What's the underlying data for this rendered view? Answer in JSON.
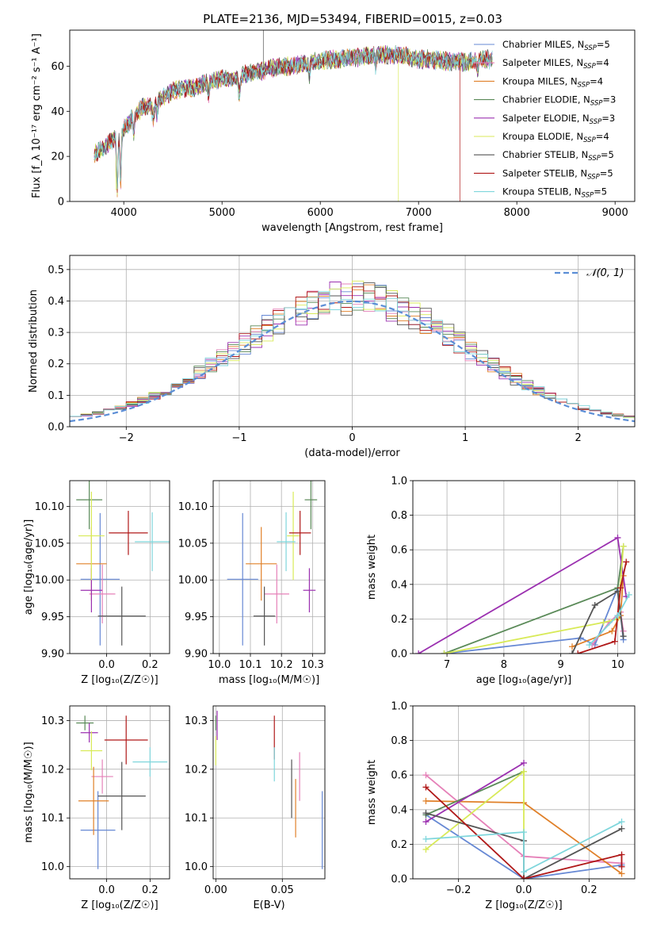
{
  "title": "PLATE=2136, MJD=53494, FIBERID=0015, z=0.03",
  "colors": {
    "Chabrier MILES": "#6688d4",
    "Salpeter MILES": "#e580b8",
    "Kroupa MILES": "#e08029",
    "Chabrier ELODIE": "#5a8a58",
    "Salpeter ELODIE": "#9b30b0",
    "Kroupa ELODIE": "#d8ea58",
    "Chabrier STELIB": "#555555",
    "Salpeter STELIB": "#b01818",
    "Kroupa STELIB": "#7fd6dc"
  },
  "chart_data": [
    {
      "id": "spectrum",
      "type": "line",
      "title": "PLATE=2136, MJD=53494, FIBERID=0015, z=0.03",
      "xlabel": "wavelength [Angstrom, rest frame]",
      "ylabel": "Flux [f_λ 10⁻¹⁷ erg cm⁻² s⁻¹ A⁻¹]",
      "xlim": [
        3450,
        9200
      ],
      "ylim": [
        0,
        76
      ],
      "xticks": [
        4000,
        5000,
        6000,
        7000,
        8000,
        9000
      ],
      "yticks": [
        0,
        20,
        40,
        60
      ],
      "grid": false,
      "legend_position": "right",
      "legend": [
        "Chabrier MILES, N_SSP=5",
        "Salpeter MILES, N_SSP=4",
        "Kroupa MILES, N_SSP=4",
        "Chabrier ELODIE, N_SSP=3",
        "Salpeter ELODIE, N_SSP=3",
        "Kroupa ELODIE, N_SSP=4",
        "Chabrier STELIB, N_SSP=5",
        "Salpeter STELIB, N_SSP=5",
        "Kroupa STELIB, N_SSP=5"
      ],
      "continuum": [
        [
          3700,
          21
        ],
        [
          3800,
          24
        ],
        [
          3900,
          28
        ],
        [
          4000,
          32
        ],
        [
          4100,
          38
        ],
        [
          4200,
          42
        ],
        [
          4300,
          43
        ],
        [
          4400,
          46
        ],
        [
          4500,
          49
        ],
        [
          4600,
          50
        ],
        [
          4700,
          50
        ],
        [
          4800,
          52
        ],
        [
          4900,
          53
        ],
        [
          5000,
          55
        ],
        [
          5100,
          54
        ],
        [
          5200,
          56
        ],
        [
          5300,
          57
        ],
        [
          5400,
          58
        ],
        [
          5500,
          59
        ],
        [
          5600,
          60
        ],
        [
          5700,
          60
        ],
        [
          5800,
          61
        ],
        [
          5900,
          62
        ],
        [
          6000,
          62
        ],
        [
          6100,
          63
        ],
        [
          6200,
          63
        ],
        [
          6300,
          64
        ],
        [
          6400,
          64
        ],
        [
          6500,
          65
        ],
        [
          6600,
          65
        ],
        [
          6700,
          65
        ],
        [
          6800,
          65
        ],
        [
          6900,
          64
        ],
        [
          7000,
          63
        ],
        [
          7100,
          63
        ],
        [
          7200,
          63
        ],
        [
          7300,
          62
        ],
        [
          7400,
          62
        ],
        [
          7500,
          62
        ],
        [
          7600,
          63
        ],
        [
          7700,
          63
        ]
      ],
      "artifacts": [
        {
          "series": "Kroupa ELODIE",
          "x": 3920,
          "to": 5
        },
        {
          "series": "Kroupa ELODIE",
          "x": 6795,
          "to": 0
        },
        {
          "series": "Salpeter STELIB",
          "x": 7420,
          "to": 0
        },
        {
          "series": "Chabrier STELIB",
          "x": 5420,
          "to": 76
        }
      ]
    },
    {
      "id": "residuals",
      "type": "line",
      "xlabel": "(data-model)/error",
      "ylabel": "Normed distribution",
      "xlim": [
        -2.5,
        2.5
      ],
      "ylim": [
        0,
        0.545
      ],
      "xticks": [
        -2,
        -1,
        0,
        1,
        2
      ],
      "yticks": [
        0.0,
        0.1,
        0.2,
        0.3,
        0.4,
        0.5
      ],
      "grid": true,
      "legend": [
        "𝒩(0, 1)"
      ],
      "legend_position": "top-right",
      "bin_width": 0.1
    },
    {
      "id": "age_vs_Z",
      "type": "scatter",
      "xlabel": "Z [log₁₀(Z/Z☉)]",
      "ylabel": "age  [log₁₀(age/yr)]",
      "xlim": [
        -0.17,
        0.29
      ],
      "ylim": [
        9.9,
        10.135
      ],
      "xticks": [
        0.0,
        0.2
      ],
      "yticks": [
        9.9,
        9.95,
        10.0,
        10.05,
        10.1
      ],
      "grid": true,
      "points": [
        {
          "s": "Chabrier MILES",
          "x": -0.03,
          "xerr": 0.09,
          "y": 10.001,
          "yerr": 0.09
        },
        {
          "s": "Salpeter MILES",
          "x": -0.02,
          "xerr": 0.06,
          "y": 9.981,
          "yerr": 0.04
        },
        {
          "s": "Kroupa MILES",
          "x": -0.07,
          "xerr": 0.07,
          "y": 10.022,
          "yerr": 0.05
        },
        {
          "s": "Chabrier ELODIE",
          "x": -0.08,
          "xerr": 0.06,
          "y": 10.109,
          "yerr": 0.04
        },
        {
          "s": "Salpeter ELODIE",
          "x": -0.07,
          "xerr": 0.05,
          "y": 9.986,
          "yerr": 0.03
        },
        {
          "s": "Kroupa ELODIE",
          "x": -0.07,
          "xerr": 0.06,
          "y": 10.06,
          "yerr": 0.06
        },
        {
          "s": "Chabrier STELIB",
          "x": 0.07,
          "xerr": 0.11,
          "y": 9.951,
          "yerr": 0.04
        },
        {
          "s": "Salpeter STELIB",
          "x": 0.1,
          "xerr": 0.09,
          "y": 10.064,
          "yerr": 0.03
        },
        {
          "s": "Kroupa STELIB",
          "x": 0.21,
          "xerr": 0.08,
          "y": 10.052,
          "yerr": 0.04
        }
      ]
    },
    {
      "id": "age_vs_mass",
      "type": "scatter",
      "xlabel": "mass [log₁₀(M/M☉)]",
      "ylabel": "",
      "xlim": [
        9.98,
        10.34
      ],
      "ylim": [
        9.9,
        10.135
      ],
      "xticks": [
        10.0,
        10.1,
        10.2,
        10.3
      ],
      "yticks": [
        9.9,
        9.95,
        10.0,
        10.05,
        10.1
      ],
      "grid": true,
      "points": [
        {
          "s": "Chabrier MILES",
          "x": 10.075,
          "xerr": 0.05,
          "y": 10.001,
          "yerr": 0.09
        },
        {
          "s": "Salpeter MILES",
          "x": 10.185,
          "xerr": 0.04,
          "y": 9.981,
          "yerr": 0.04
        },
        {
          "s": "Kroupa MILES",
          "x": 10.135,
          "xerr": 0.05,
          "y": 10.022,
          "yerr": 0.05
        },
        {
          "s": "Chabrier ELODIE",
          "x": 10.295,
          "xerr": 0.02,
          "y": 10.109,
          "yerr": 0.04
        },
        {
          "s": "Salpeter ELODIE",
          "x": 10.29,
          "xerr": 0.02,
          "y": 9.986,
          "yerr": 0.03
        },
        {
          "s": "Kroupa ELODIE",
          "x": 10.238,
          "xerr": 0.02,
          "y": 10.06,
          "yerr": 0.06
        },
        {
          "s": "Chabrier STELIB",
          "x": 10.145,
          "xerr": 0.035,
          "y": 9.951,
          "yerr": 0.04
        },
        {
          "s": "Salpeter STELIB",
          "x": 10.26,
          "xerr": 0.035,
          "y": 10.064,
          "yerr": 0.03
        },
        {
          "s": "Kroupa STELIB",
          "x": 10.215,
          "xerr": 0.03,
          "y": 10.052,
          "yerr": 0.04
        }
      ]
    },
    {
      "id": "weight_vs_age",
      "type": "line",
      "xlabel": "age  [log₁₀(age/yr)]",
      "ylabel": "mass weight",
      "xlim": [
        6.4,
        10.3
      ],
      "ylim": [
        0,
        1
      ],
      "xticks": [
        7,
        8,
        9,
        10
      ],
      "yticks": [
        0.0,
        0.2,
        0.4,
        0.6,
        0.8,
        1.0
      ],
      "grid": true,
      "series": [
        {
          "name": "Chabrier MILES",
          "points": [
            [
              6.95,
              0.0
            ],
            [
              9.35,
              0.09
            ],
            [
              9.6,
              0.05
            ],
            [
              10.0,
              0.38
            ],
            [
              10.1,
              0.08
            ]
          ]
        },
        {
          "name": "Salpeter MILES",
          "points": [
            [
              9.55,
              0.05
            ],
            [
              9.85,
              0.18
            ],
            [
              10.05,
              0.24
            ],
            [
              10.1,
              0.13
            ]
          ]
        },
        {
          "name": "Kroupa MILES",
          "points": [
            [
              9.2,
              0.04
            ],
            [
              9.9,
              0.13
            ],
            [
              10.05,
              0.22
            ],
            [
              10.1,
              0.45
            ]
          ]
        },
        {
          "name": "Chabrier ELODIE",
          "points": [
            [
              6.95,
              0.0
            ],
            [
              10.0,
              0.38
            ],
            [
              10.1,
              0.62
            ]
          ]
        },
        {
          "name": "Salpeter ELODIE",
          "points": [
            [
              6.5,
              0.0
            ],
            [
              10.0,
              0.67
            ],
            [
              10.15,
              0.33
            ]
          ]
        },
        {
          "name": "Kroupa ELODIE",
          "points": [
            [
              6.95,
              0.0
            ],
            [
              9.75,
              0.18
            ],
            [
              10.0,
              0.2
            ],
            [
              10.1,
              0.62
            ]
          ]
        },
        {
          "name": "Chabrier STELIB",
          "points": [
            [
              9.2,
              0.0
            ],
            [
              9.6,
              0.28
            ],
            [
              10.0,
              0.36
            ],
            [
              10.1,
              0.1
            ]
          ]
        },
        {
          "name": "Salpeter STELIB",
          "points": [
            [
              9.3,
              0.0
            ],
            [
              9.95,
              0.07
            ],
            [
              10.05,
              0.38
            ],
            [
              10.15,
              0.53
            ]
          ]
        },
        {
          "name": "Kroupa STELIB",
          "points": [
            [
              9.5,
              0.05
            ],
            [
              10.0,
              0.22
            ],
            [
              10.2,
              0.34
            ]
          ]
        }
      ]
    },
    {
      "id": "mass_vs_Z",
      "type": "scatter",
      "xlabel": "Z [log₁₀(Z/Z☉)]",
      "ylabel": "mass [log₁₀(M/M☉)]",
      "xlim": [
        -0.17,
        0.29
      ],
      "ylim": [
        9.975,
        10.33
      ],
      "xticks": [
        0.0,
        0.2
      ],
      "yticks": [
        10.0,
        10.1,
        10.2,
        10.3
      ],
      "grid": true,
      "points": [
        {
          "s": "Chabrier MILES",
          "x": -0.04,
          "xerr": 0.08,
          "y": 10.075,
          "yerr": 0.08
        },
        {
          "s": "Salpeter MILES",
          "x": -0.02,
          "xerr": 0.05,
          "y": 10.185,
          "yerr": 0.035
        },
        {
          "s": "Kroupa MILES",
          "x": -0.06,
          "xerr": 0.07,
          "y": 10.135,
          "yerr": 0.07
        },
        {
          "s": "Chabrier ELODIE",
          "x": -0.1,
          "xerr": 0.04,
          "y": 10.295,
          "yerr": 0.015
        },
        {
          "s": "Salpeter ELODIE",
          "x": -0.08,
          "xerr": 0.04,
          "y": 10.275,
          "yerr": 0.02
        },
        {
          "s": "Kroupa ELODIE",
          "x": -0.07,
          "xerr": 0.05,
          "y": 10.238,
          "yerr": 0.04
        },
        {
          "s": "Chabrier STELIB",
          "x": 0.07,
          "xerr": 0.11,
          "y": 10.145,
          "yerr": 0.07
        },
        {
          "s": "Salpeter STELIB",
          "x": 0.09,
          "xerr": 0.1,
          "y": 10.26,
          "yerr": 0.05
        },
        {
          "s": "Kroupa STELIB",
          "x": 0.2,
          "xerr": 0.08,
          "y": 10.215,
          "yerr": 0.03
        }
      ]
    },
    {
      "id": "mass_vs_EBV",
      "type": "scatter",
      "xlabel": "E(B-V)",
      "ylabel": "",
      "xlim": [
        -0.002,
        0.082
      ],
      "ylim": [
        9.975,
        10.33
      ],
      "xticks": [
        0.0,
        0.05
      ],
      "yticks": [
        10.0,
        10.1,
        10.2,
        10.3
      ],
      "grid": true,
      "points": [
        {
          "s": "Chabrier MILES",
          "x": 0.08,
          "y": 10.075,
          "yerr": 0.08
        },
        {
          "s": "Salpeter MILES",
          "x": 0.063,
          "y": 10.185,
          "yerr": 0.05
        },
        {
          "s": "Kroupa MILES",
          "x": 0.06,
          "y": 10.12,
          "yerr": 0.06
        },
        {
          "s": "Chabrier ELODIE",
          "x": 0.0,
          "y": 10.295,
          "yerr": 0.015
        },
        {
          "s": "Salpeter ELODIE",
          "x": 0.001,
          "y": 10.29,
          "yerr": 0.03
        },
        {
          "s": "Kroupa ELODIE",
          "x": 0.0,
          "y": 10.238,
          "yerr": 0.03
        },
        {
          "s": "Chabrier STELIB",
          "x": 0.057,
          "y": 10.16,
          "yerr": 0.06
        },
        {
          "s": "Salpeter STELIB",
          "x": 0.044,
          "y": 10.265,
          "yerr": 0.045
        },
        {
          "s": "Kroupa STELIB",
          "x": 0.044,
          "y": 10.21,
          "yerr": 0.035
        }
      ]
    },
    {
      "id": "weight_vs_Z",
      "type": "line",
      "xlabel": "Z [log₁₀(Z/Z☉)]",
      "ylabel": "mass weight",
      "xlim": [
        -0.34,
        0.34
      ],
      "ylim": [
        0,
        1
      ],
      "xticks": [
        -0.2,
        0.0,
        0.2
      ],
      "yticks": [
        0.0,
        0.2,
        0.4,
        0.6,
        0.8,
        1.0
      ],
      "grid": true,
      "series": [
        {
          "name": "Chabrier MILES",
          "points": [
            [
              -0.3,
              0.37
            ],
            [
              0.0,
              0.0
            ],
            [
              0.3,
              0.08
            ]
          ]
        },
        {
          "name": "Salpeter MILES",
          "points": [
            [
              -0.3,
              0.6
            ],
            [
              0.0,
              0.13
            ],
            [
              0.3,
              0.09
            ]
          ]
        },
        {
          "name": "Kroupa MILES",
          "points": [
            [
              -0.3,
              0.45
            ],
            [
              0.0,
              0.44
            ],
            [
              0.3,
              0.03
            ]
          ]
        },
        {
          "name": "Chabrier ELODIE",
          "points": [
            [
              -0.3,
              0.37
            ],
            [
              0.0,
              0.62
            ]
          ]
        },
        {
          "name": "Salpeter ELODIE",
          "points": [
            [
              -0.3,
              0.33
            ],
            [
              0.0,
              0.67
            ]
          ]
        },
        {
          "name": "Kroupa ELODIE",
          "points": [
            [
              -0.3,
              0.17
            ],
            [
              0.0,
              0.62
            ],
            [
              0.0,
              0.0
            ]
          ]
        },
        {
          "name": "Chabrier STELIB",
          "points": [
            [
              -0.3,
              0.38
            ],
            [
              0.0,
              0.22
            ],
            [
              0.0,
              0.0
            ],
            [
              0.3,
              0.29
            ]
          ]
        },
        {
          "name": "Salpeter STELIB",
          "points": [
            [
              -0.3,
              0.53
            ],
            [
              0.0,
              0.0
            ],
            [
              0.3,
              0.14
            ],
            [
              0.3,
              0.07
            ]
          ]
        },
        {
          "name": "Kroupa STELIB",
          "points": [
            [
              -0.3,
              0.23
            ],
            [
              0.0,
              0.27
            ],
            [
              0.0,
              0.04
            ],
            [
              0.3,
              0.33
            ]
          ]
        }
      ]
    }
  ]
}
